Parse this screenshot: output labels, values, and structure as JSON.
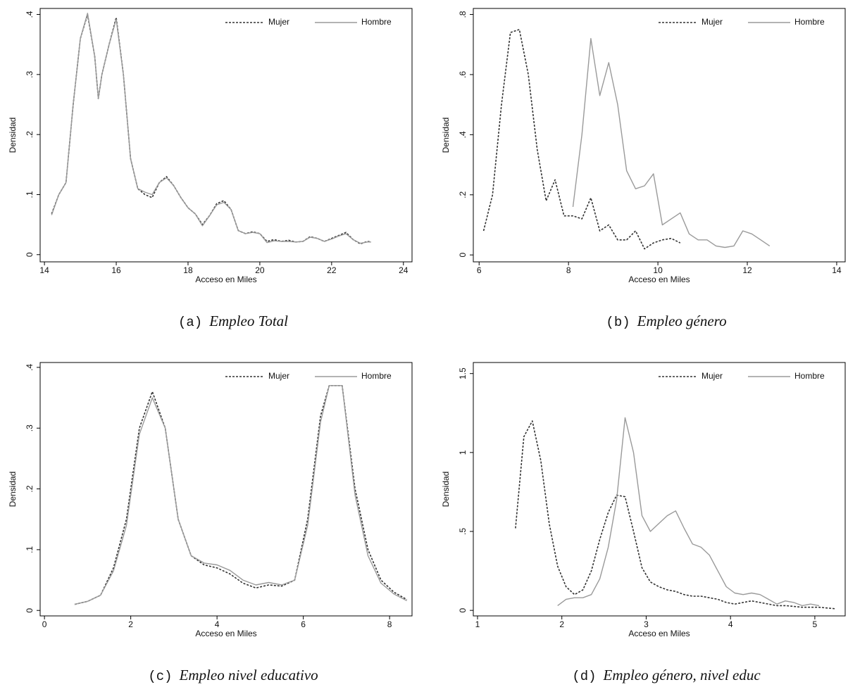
{
  "chart_data": [
    {
      "type": "line",
      "caption_label": "(a)",
      "caption": "Empleo Total",
      "xlabel": "Acceso en Miles",
      "ylabel": "Densidad",
      "xlim": [
        13.88,
        24.24
      ],
      "ylim": [
        -0.012,
        0.41
      ],
      "xticks": [
        14,
        16,
        18,
        20,
        22,
        24
      ],
      "yticks": [
        0,
        {
          "value": 0.1,
          "label": ".1"
        },
        {
          "value": 0.2,
          "label": ".2"
        },
        {
          "value": 0.3,
          "label": ".3"
        },
        {
          "value": 0.4,
          "label": ".4"
        }
      ],
      "legend": "top-right",
      "x": [
        14.2,
        14.4,
        14.6,
        14.8,
        15.0,
        15.2,
        15.4,
        15.5,
        15.6,
        15.8,
        16.0,
        16.2,
        16.4,
        16.6,
        16.8,
        17.0,
        17.2,
        17.4,
        17.6,
        17.8,
        18.0,
        18.2,
        18.4,
        18.6,
        18.8,
        19.0,
        19.2,
        19.4,
        19.6,
        19.8,
        20.0,
        20.2,
        20.4,
        20.6,
        20.8,
        21.0,
        21.2,
        21.4,
        21.6,
        21.8,
        22.0,
        22.2,
        22.4,
        22.6,
        22.8,
        23.0,
        23.1
      ],
      "series": [
        {
          "name": "Mujer",
          "color": "#333333",
          "style": "dashed",
          "values": [
            0.068,
            0.1,
            0.12,
            0.25,
            0.36,
            0.4,
            0.33,
            0.26,
            0.3,
            0.35,
            0.395,
            0.3,
            0.16,
            0.11,
            0.1,
            0.095,
            0.12,
            0.13,
            0.115,
            0.095,
            0.078,
            0.068,
            0.05,
            0.065,
            0.085,
            0.09,
            0.075,
            0.04,
            0.035,
            0.038,
            0.035,
            0.022,
            0.025,
            0.022,
            0.024,
            0.021,
            0.022,
            0.03,
            0.027,
            0.022,
            0.027,
            0.032,
            0.037,
            0.025,
            0.018,
            0.022,
            0.021
          ]
        },
        {
          "name": "Hombre",
          "color": "#9a9a9a",
          "style": "solid",
          "values": [
            0.066,
            0.1,
            0.12,
            0.25,
            0.36,
            0.402,
            0.33,
            0.26,
            0.3,
            0.35,
            0.392,
            0.3,
            0.16,
            0.11,
            0.104,
            0.1,
            0.12,
            0.128,
            0.115,
            0.095,
            0.078,
            0.068,
            0.048,
            0.065,
            0.083,
            0.087,
            0.075,
            0.04,
            0.035,
            0.037,
            0.035,
            0.02,
            0.023,
            0.022,
            0.022,
            0.021,
            0.022,
            0.029,
            0.027,
            0.022,
            0.026,
            0.031,
            0.035,
            0.025,
            0.019,
            0.021,
            0.021
          ]
        }
      ]
    },
    {
      "type": "line",
      "caption_label": "(b)",
      "caption": "Empleo género",
      "xlabel": "Acceso en Miles",
      "ylabel": "Densidad",
      "xlim": [
        5.87,
        14.19
      ],
      "ylim": [
        -0.023,
        0.82
      ],
      "xticks": [
        6,
        8,
        10,
        12,
        14
      ],
      "yticks": [
        0,
        {
          "value": 0.2,
          "label": ".2"
        },
        {
          "value": 0.4,
          "label": ".4"
        },
        {
          "value": 0.6,
          "label": ".6"
        },
        {
          "value": 0.8,
          "label": ".8"
        }
      ],
      "legend": "top-right",
      "x": [
        6.1,
        6.3,
        6.5,
        6.7,
        6.9,
        7.1,
        7.3,
        7.5,
        7.7,
        7.9,
        8.1,
        8.3,
        8.5,
        8.7,
        8.9,
        9.1,
        9.3,
        9.5,
        9.7,
        9.9,
        10.1,
        10.3,
        10.5,
        10.7,
        10.9,
        11.1,
        11.3,
        11.5,
        11.7,
        11.9,
        12.1,
        12.3,
        12.5
      ],
      "series": [
        {
          "name": "Mujer",
          "color": "#333333",
          "style": "dashed",
          "values": [
            0.08,
            0.2,
            0.5,
            0.74,
            0.75,
            0.6,
            0.35,
            0.18,
            0.25,
            0.13,
            0.13,
            0.12,
            0.19,
            0.08,
            0.1,
            0.05,
            0.05,
            0.08,
            0.02,
            0.04,
            0.05,
            0.055,
            0.04,
            null,
            null,
            null,
            null,
            null,
            null,
            null,
            null,
            null,
            null
          ]
        },
        {
          "name": "Hombre",
          "color": "#9a9a9a",
          "style": "solid",
          "values": [
            null,
            null,
            null,
            null,
            null,
            null,
            null,
            null,
            null,
            null,
            0.16,
            0.4,
            0.72,
            0.53,
            0.64,
            0.5,
            0.28,
            0.22,
            0.23,
            0.27,
            0.1,
            0.12,
            0.14,
            0.07,
            0.05,
            0.05,
            0.03,
            0.025,
            0.03,
            0.08,
            0.07,
            0.05,
            0.03
          ]
        }
      ]
    },
    {
      "type": "line",
      "caption_label": "(c)",
      "caption": "Empleo nivel educativo",
      "xlabel": "Acceso en Miles",
      "ylabel": "Densidad",
      "xlim": [
        -0.1,
        8.52
      ],
      "ylim": [
        -0.009,
        0.408
      ],
      "xticks": [
        0,
        2,
        4,
        6,
        8
      ],
      "yticks": [
        0,
        {
          "value": 0.1,
          "label": ".1"
        },
        {
          "value": 0.2,
          "label": ".2"
        },
        {
          "value": 0.3,
          "label": ".3"
        },
        {
          "value": 0.4,
          "label": ".4"
        }
      ],
      "legend": "top-right",
      "x": [
        0.7,
        1.0,
        1.3,
        1.6,
        1.9,
        2.2,
        2.5,
        2.8,
        3.1,
        3.4,
        3.7,
        4.0,
        4.3,
        4.6,
        4.9,
        5.2,
        5.5,
        5.8,
        6.1,
        6.4,
        6.6,
        6.9,
        7.2,
        7.5,
        7.8,
        8.1,
        8.4
      ],
      "series": [
        {
          "name": "Mujer",
          "color": "#333333",
          "style": "dashed",
          "values": [
            0.01,
            0.015,
            0.025,
            0.07,
            0.15,
            0.3,
            0.36,
            0.3,
            0.15,
            0.09,
            0.075,
            0.07,
            0.06,
            0.045,
            0.037,
            0.042,
            0.04,
            0.05,
            0.15,
            0.32,
            0.37,
            0.37,
            0.2,
            0.1,
            0.05,
            0.03,
            0.018
          ]
        },
        {
          "name": "Hombre",
          "color": "#9a9a9a",
          "style": "solid",
          "values": [
            0.01,
            0.015,
            0.025,
            0.065,
            0.14,
            0.29,
            0.35,
            0.3,
            0.15,
            0.09,
            0.078,
            0.075,
            0.066,
            0.05,
            0.042,
            0.046,
            0.042,
            0.05,
            0.14,
            0.31,
            0.37,
            0.37,
            0.19,
            0.09,
            0.045,
            0.027,
            0.016
          ]
        }
      ]
    },
    {
      "type": "line",
      "caption_label": "(d)",
      "caption": "Empleo género, nivel educ",
      "xlabel": "Acceso en Miles",
      "ylabel": "Densidad",
      "xlim": [
        0.95,
        5.36
      ],
      "ylim": [
        -0.035,
        1.57
      ],
      "xticks": [
        1,
        2,
        3,
        4,
        5
      ],
      "yticks": [
        0,
        {
          "value": 0.5,
          "label": ".5"
        },
        1,
        1.5
      ],
      "legend": "top-right",
      "x": [
        1.45,
        1.55,
        1.65,
        1.75,
        1.85,
        1.95,
        2.05,
        2.15,
        2.25,
        2.35,
        2.45,
        2.55,
        2.65,
        2.75,
        2.85,
        2.95,
        3.05,
        3.15,
        3.25,
        3.35,
        3.45,
        3.55,
        3.65,
        3.75,
        3.85,
        3.95,
        4.05,
        4.15,
        4.25,
        4.35,
        4.45,
        4.55,
        4.65,
        4.75,
        4.85,
        4.95,
        5.05,
        5.15,
        5.25
      ],
      "series": [
        {
          "name": "Mujer",
          "color": "#333333",
          "style": "dashed",
          "values": [
            0.52,
            1.1,
            1.2,
            0.95,
            0.55,
            0.28,
            0.15,
            0.1,
            0.13,
            0.25,
            0.45,
            0.62,
            0.73,
            0.72,
            0.5,
            0.27,
            0.18,
            0.15,
            0.13,
            0.12,
            0.1,
            0.09,
            0.09,
            0.08,
            0.07,
            0.05,
            0.04,
            0.05,
            0.06,
            0.05,
            0.04,
            0.03,
            0.03,
            0.025,
            0.02,
            0.02,
            0.02,
            0.015,
            0.01
          ]
        },
        {
          "name": "Hombre",
          "color": "#9a9a9a",
          "style": "solid",
          "values": [
            null,
            null,
            null,
            null,
            null,
            0.03,
            0.07,
            0.08,
            0.08,
            0.1,
            0.2,
            0.4,
            0.7,
            1.22,
            1.0,
            0.6,
            0.5,
            0.55,
            0.6,
            0.63,
            0.52,
            0.42,
            0.4,
            0.35,
            0.25,
            0.15,
            0.11,
            0.1,
            0.11,
            0.1,
            0.07,
            0.04,
            0.06,
            0.05,
            0.03,
            0.04,
            0.03,
            null,
            null
          ]
        }
      ]
    }
  ]
}
